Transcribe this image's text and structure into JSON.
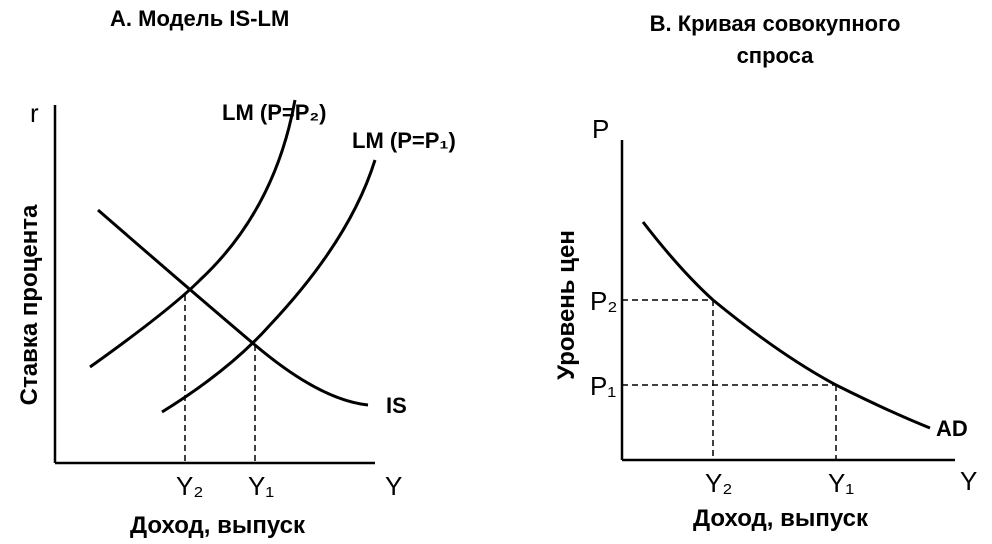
{
  "panel_a": {
    "title": "А. Модель IS-LM",
    "y_axis_symbol": "r",
    "x_axis_symbol": "Y",
    "y_axis_label": "Ставка процента",
    "x_axis_label": "Доход, выпуск",
    "curves": {
      "lm_p2": "LM (P=P₂)",
      "lm_p1": "LM (P=P₁)",
      "is": "IS"
    },
    "x_ticks": [
      "Y₂",
      "Y₁"
    ]
  },
  "panel_b": {
    "title": "В. Кривая совокупного спроса",
    "y_axis_symbol": "P",
    "x_axis_symbol": "Y",
    "y_axis_label": "Уровень цен",
    "x_axis_label": "Доход, выпуск",
    "curves": {
      "ad": "AD"
    },
    "x_ticks": [
      "Y₂",
      "Y₁"
    ],
    "y_ticks": [
      "P₂",
      "P₁"
    ]
  }
}
